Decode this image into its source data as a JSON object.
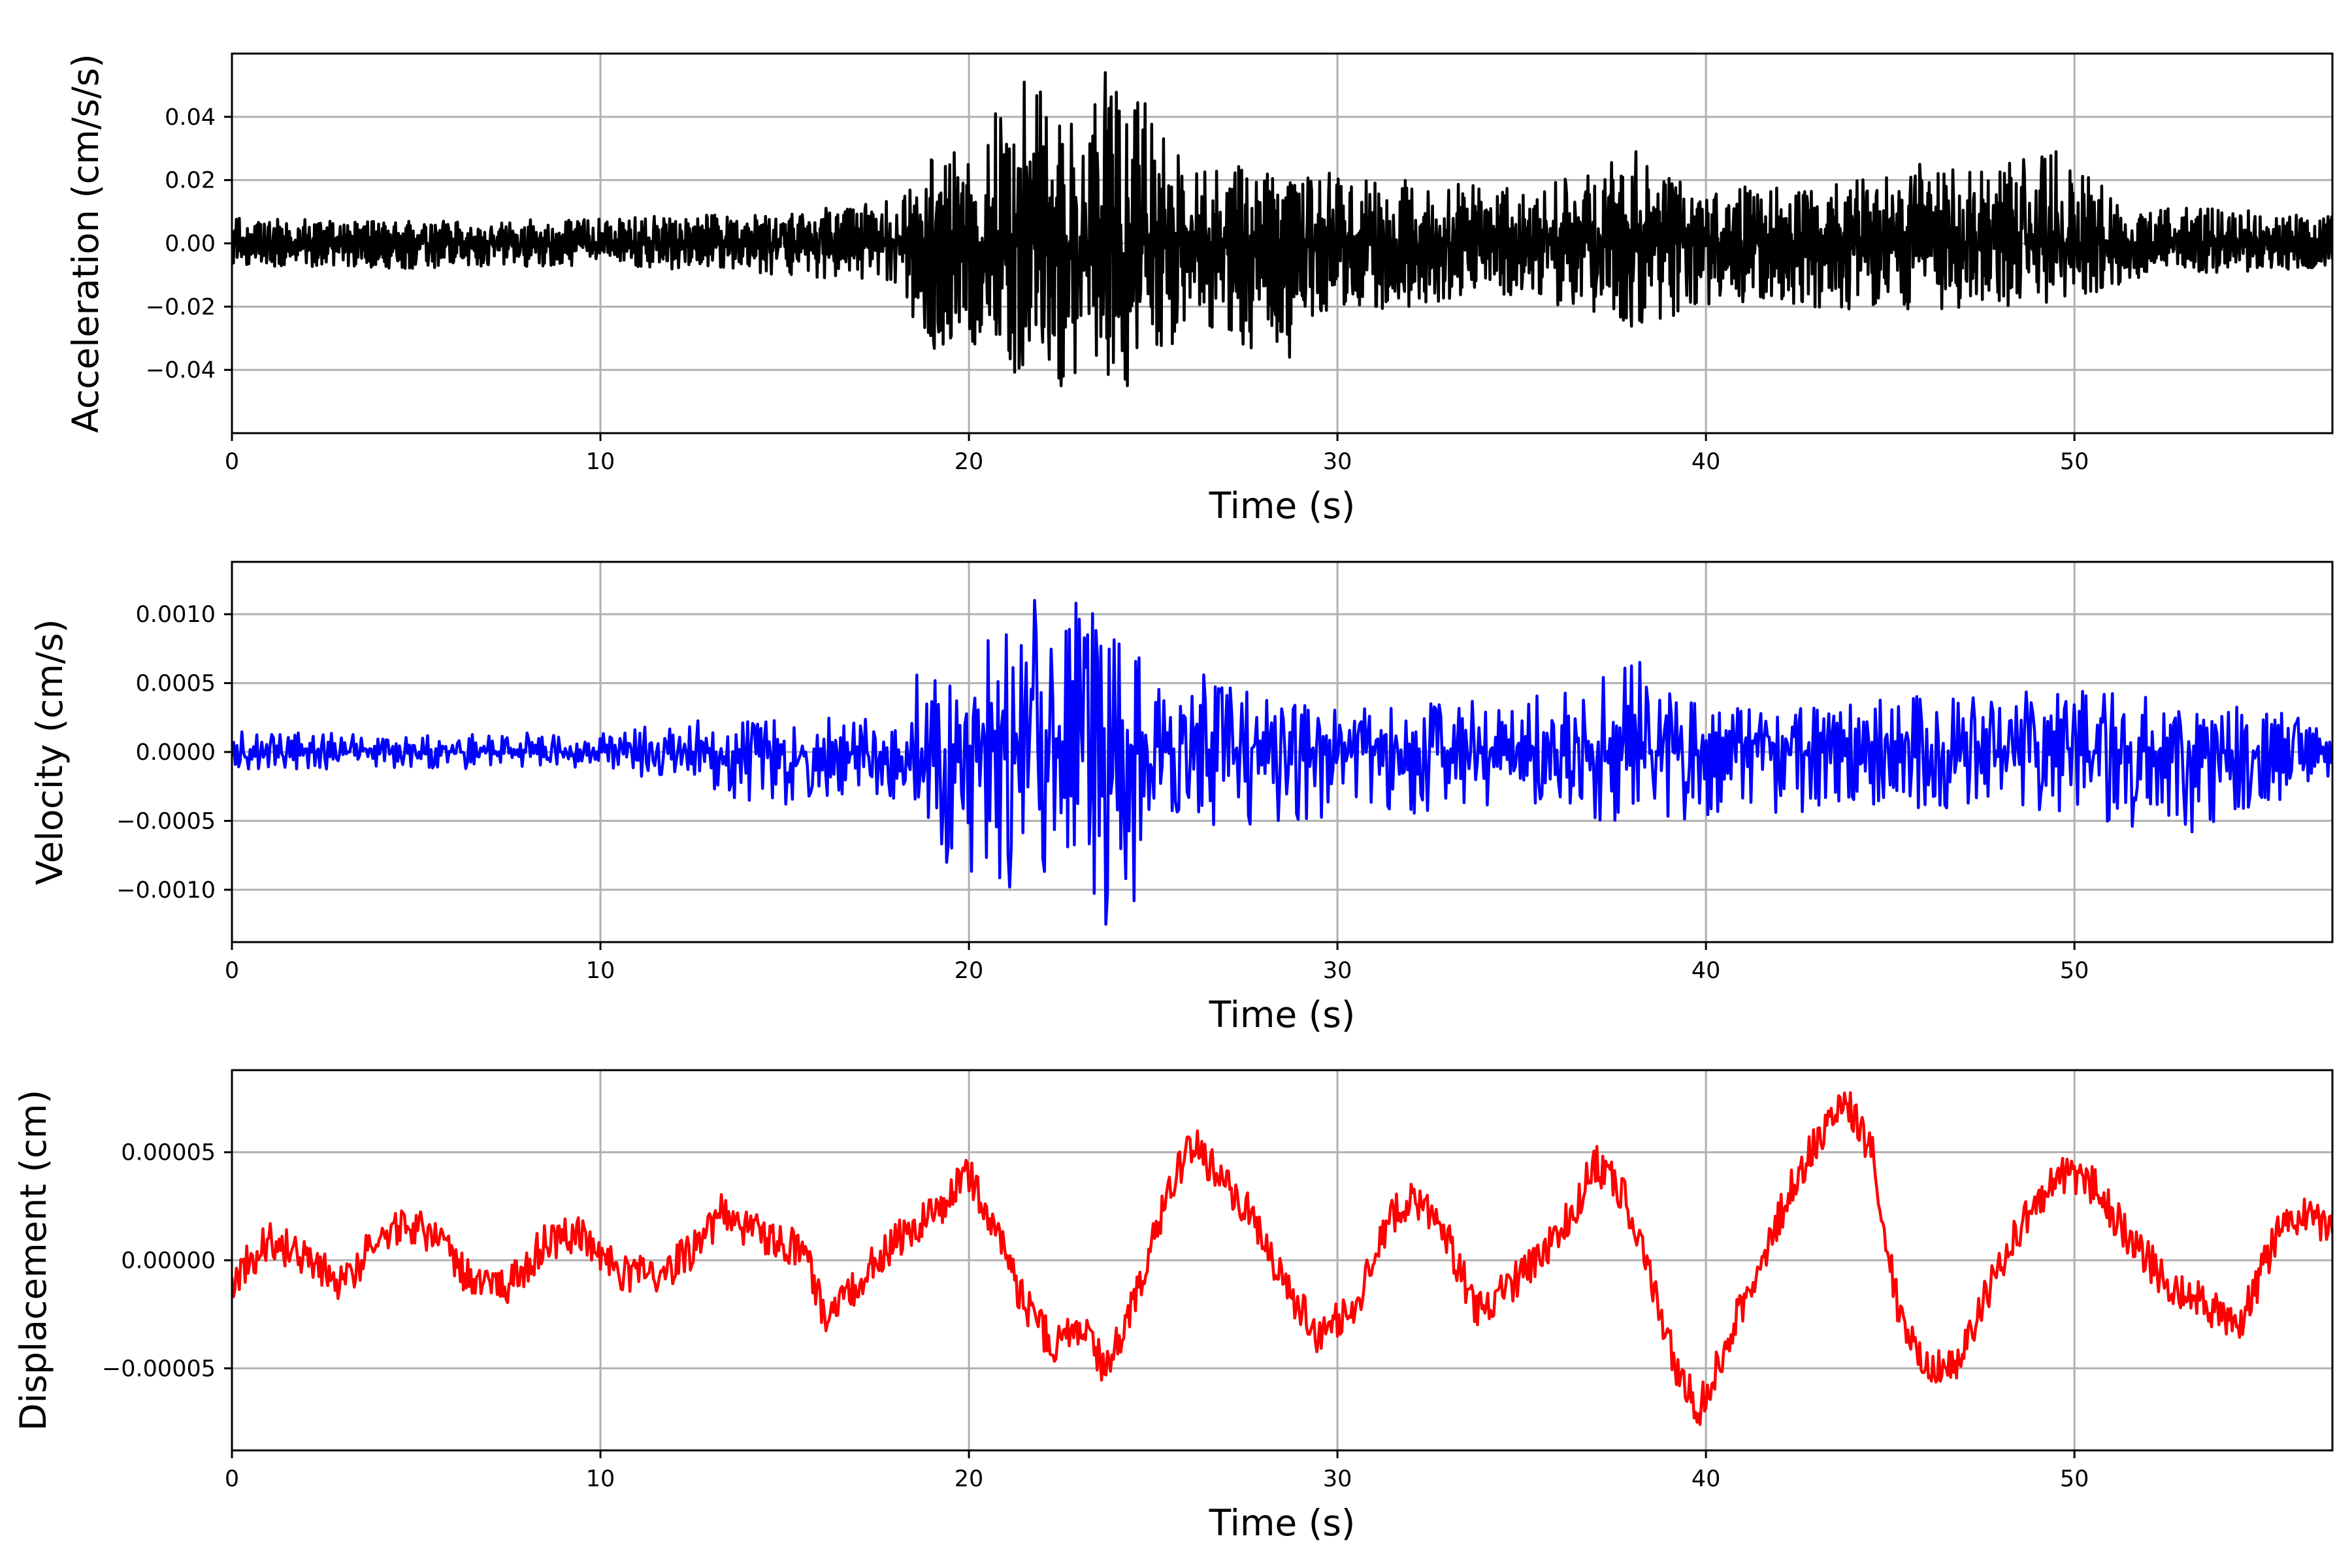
{
  "chart_data": [
    {
      "type": "line",
      "xlabel": "Time (s)",
      "ylabel": "Acceleration (cm/s/s)",
      "xlim": [
        0,
        57
      ],
      "ylim": [
        -0.06,
        0.06
      ],
      "xticks": [
        0,
        10,
        20,
        30,
        40,
        50
      ],
      "xtick_labels": [
        "0",
        "10",
        "20",
        "30",
        "40",
        "50"
      ],
      "yticks": [
        -0.04,
        -0.02,
        0.0,
        0.02,
        0.04
      ],
      "ytick_labels": [
        "−0.04",
        "−0.02",
        "0.00",
        "0.02",
        "0.04"
      ],
      "grid": true,
      "series": [
        {
          "color": "#000000",
          "envelope": {
            "x": [
              0,
              5,
              10,
              15,
              17,
              18,
              19,
              20,
              21,
              22,
              23,
              24,
              25,
              26,
              28,
              30,
              35,
              38,
              40,
              45,
              49.5,
              52,
              57
            ],
            "upper": [
              0.008,
              0.007,
              0.008,
              0.01,
              0.012,
              0.016,
              0.03,
              0.035,
              0.045,
              0.052,
              0.042,
              0.052,
              0.046,
              0.025,
              0.025,
              0.022,
              0.017,
              0.028,
              0.017,
              0.021,
              0.028,
              0.012,
              0.009
            ],
            "lower": [
              -0.007,
              -0.008,
              -0.007,
              -0.01,
              -0.012,
              -0.016,
              -0.035,
              -0.03,
              -0.042,
              -0.043,
              -0.045,
              -0.044,
              -0.04,
              -0.025,
              -0.036,
              -0.022,
              -0.017,
              -0.027,
              -0.02,
              -0.021,
              -0.02,
              -0.01,
              -0.008
            ]
          },
          "peaks": [
            {
              "x": 21.5,
              "y": 0.051
            },
            {
              "x": 23.7,
              "y": 0.054
            },
            {
              "x": 24.3,
              "y": 0.04
            },
            {
              "x": 22.5,
              "y": -0.045
            },
            {
              "x": 24.3,
              "y": -0.045
            },
            {
              "x": 28.7,
              "y": -0.036
            },
            {
              "x": 38.1,
              "y": 0.029
            },
            {
              "x": 49.5,
              "y": 0.029
            },
            {
              "x": 45.8,
              "y": 0.025
            }
          ]
        }
      ]
    },
    {
      "type": "line",
      "xlabel": "Time (s)",
      "ylabel": "Velocity (cm/s)",
      "xlim": [
        0,
        57
      ],
      "ylim": [
        -0.00138,
        0.00138
      ],
      "xticks": [
        0,
        10,
        20,
        30,
        40,
        50
      ],
      "xtick_labels": [
        "0",
        "10",
        "20",
        "30",
        "40",
        "50"
      ],
      "yticks": [
        -0.001,
        -0.0005,
        0.0,
        0.0005,
        0.001
      ],
      "ytick_labels": [
        "−0.0010",
        "−0.0005",
        "0.0000",
        "0.0005",
        "0.0010"
      ],
      "grid": true,
      "series": [
        {
          "color": "#0000ff",
          "envelope": {
            "x": [
              0,
              5,
              10,
              13,
              15,
              17,
              18,
              19,
              20,
              21,
              22,
              23,
              24,
              25,
              26,
              28,
              30,
              35,
              38,
              40,
              45,
              50,
              53,
              57
            ],
            "upper": [
              0.00015,
              0.00013,
              0.00015,
              0.00025,
              0.00025,
              0.00025,
              0.0003,
              0.00075,
              0.00075,
              0.00105,
              0.0011,
              0.0011,
              0.00102,
              0.0005,
              0.0006,
              0.0004,
              0.0003,
              0.0004,
              0.00065,
              0.0003,
              0.0004,
              0.00045,
              0.0004,
              0.00025
            ],
            "lower": [
              -0.00013,
              -0.00012,
              -0.00013,
              -0.0003,
              -0.0004,
              -0.0003,
              -0.00035,
              -0.00075,
              -0.0009,
              -0.001,
              -0.00105,
              -0.0011,
              -0.00112,
              -0.0005,
              -0.00055,
              -0.0006,
              -0.0005,
              -0.0004,
              -0.00055,
              -0.0005,
              -0.0004,
              -0.0005,
              -0.00058,
              -0.00025
            ]
          },
          "peaks": [
            {
              "x": 21.8,
              "y": 0.0011
            },
            {
              "x": 23.7,
              "y": -0.00125
            },
            {
              "x": 24.5,
              "y": -0.00108
            },
            {
              "x": 21.1,
              "y": -0.00098
            },
            {
              "x": 22.9,
              "y": 0.00108
            },
            {
              "x": 38.2,
              "y": 0.00065
            },
            {
              "x": 53.2,
              "y": -0.00058
            }
          ]
        }
      ]
    },
    {
      "type": "line",
      "xlabel": "Time (s)",
      "ylabel": "Displacement (cm)",
      "xlim": [
        0,
        57
      ],
      "ylim": [
        -8.8e-05,
        8.8e-05
      ],
      "xticks": [
        0,
        10,
        20,
        30,
        40,
        50
      ],
      "xtick_labels": [
        "0",
        "10",
        "20",
        "30",
        "40",
        "50"
      ],
      "yticks": [
        -5e-05,
        0.0,
        5e-05
      ],
      "ytick_labels": [
        "−0.00005",
        "0.00000",
        "0.00005"
      ],
      "grid": true,
      "series": [
        {
          "color": "#ff0000",
          "x": [
            0,
            1,
            2,
            3,
            4,
            4.7,
            5.5,
            6.5,
            7.5,
            8.5,
            9.5,
            10.5,
            11.5,
            12.5,
            13.3,
            14.5,
            15.5,
            16.2,
            17,
            18,
            19,
            20,
            20.8,
            21.5,
            22.3,
            23,
            23.7,
            24.5,
            25.3,
            26,
            26.8,
            27.5,
            28.5,
            29.5,
            30.5,
            31.5,
            32,
            33,
            33.8,
            34.8,
            35.5,
            36.3,
            37,
            37.8,
            38.5,
            39.2,
            39.8,
            40.5,
            41.5,
            42.5,
            43.2,
            43.8,
            44.5,
            45.3,
            46,
            46.8,
            47.5,
            48.5,
            49.5,
            50.5,
            51.5,
            52.5,
            53.5,
            54.5,
            55.5,
            56.3,
            57
          ],
          "y": [
            -1e-05,
            1e-05,
            0.0,
            -1e-05,
            1e-05,
            1.8e-05,
            1e-05,
            -1e-05,
            -1.2e-05,
            8e-06,
            1.2e-05,
            -5e-06,
            -8e-06,
            5e-06,
            2.2e-05,
            1e-05,
            5e-06,
            -3e-05,
            -1e-05,
            1e-05,
            2e-05,
            4e-05,
            1e-05,
            -2e-05,
            -4e-05,
            -3e-05,
            -5e-05,
            -2e-05,
            2.5e-05,
            5.5e-05,
            4e-05,
            2.5e-05,
            -1e-05,
            -3.5e-05,
            -2e-05,
            2e-05,
            3e-05,
            1e-05,
            -2.5e-05,
            -1e-05,
            0.0,
            2e-05,
            4.5e-05,
            3e-05,
            -1e-05,
            -5e-05,
            -7e-05,
            -4e-05,
            0.0,
            4e-05,
            6e-05,
            7.5e-05,
            5e-05,
            -3e-05,
            -5e-05,
            -5e-05,
            -2e-05,
            1.5e-05,
            4e-05,
            3.5e-05,
            1e-05,
            -1e-05,
            -2e-05,
            -3e-05,
            1.2e-05,
            2.2e-05,
            1.5e-05
          ]
        }
      ]
    }
  ]
}
